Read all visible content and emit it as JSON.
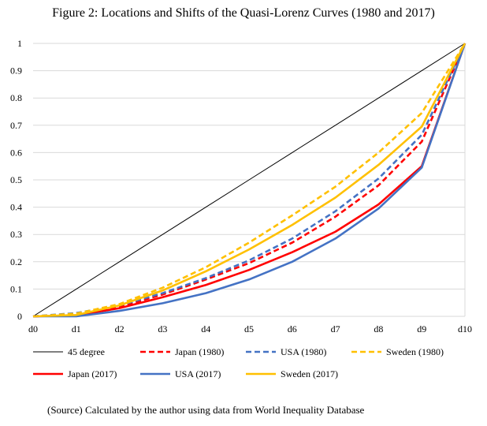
{
  "chart_data": {
    "type": "line",
    "title": "Figure 2: Locations and Shifts of the Quasi-Lorenz Curves (1980 and 2017)",
    "categories": [
      "d0",
      "d1",
      "d2",
      "d3",
      "d4",
      "d5",
      "d6",
      "d7",
      "d8",
      "d9",
      "d10"
    ],
    "yticks": [
      "0",
      "0.1",
      "0.2",
      "0.3",
      "0.4",
      "0.5",
      "0.6",
      "0.7",
      "0.8",
      "0.9",
      "1"
    ],
    "ylim": [
      0,
      1
    ],
    "grid": true,
    "legend_placement": "bottom",
    "series": [
      {
        "name": "45 degree",
        "color": "#000000",
        "dash": false,
        "values": [
          0,
          0.1,
          0.2,
          0.3,
          0.4,
          0.5,
          0.6,
          0.7,
          0.8,
          0.9,
          1
        ]
      },
      {
        "name": "Japan (1980)",
        "color": "#FF0000",
        "dash": true,
        "values": [
          0,
          0.005,
          0.035,
          0.08,
          0.135,
          0.195,
          0.27,
          0.365,
          0.48,
          0.64,
          1
        ]
      },
      {
        "name": "USA (1980)",
        "color": "#4472C4",
        "dash": true,
        "values": [
          0,
          0.012,
          0.04,
          0.085,
          0.14,
          0.205,
          0.285,
          0.385,
          0.505,
          0.665,
          1
        ]
      },
      {
        "name": "Sweden (1980)",
        "color": "#FFC000",
        "dash": true,
        "values": [
          0,
          0.01,
          0.045,
          0.105,
          0.18,
          0.27,
          0.37,
          0.475,
          0.6,
          0.745,
          1
        ]
      },
      {
        "name": "Japan (2017)",
        "color": "#FF0000",
        "dash": false,
        "values": [
          0,
          0.003,
          0.03,
          0.07,
          0.115,
          0.17,
          0.235,
          0.31,
          0.41,
          0.55,
          1
        ]
      },
      {
        "name": "USA (2017)",
        "color": "#4472C4",
        "dash": false,
        "values": [
          0,
          0,
          0.02,
          0.048,
          0.085,
          0.135,
          0.2,
          0.285,
          0.395,
          0.545,
          1
        ]
      },
      {
        "name": "Sweden (2017)",
        "color": "#FFC000",
        "dash": false,
        "values": [
          0,
          0.005,
          0.04,
          0.095,
          0.165,
          0.245,
          0.335,
          0.435,
          0.555,
          0.695,
          1
        ]
      }
    ]
  },
  "source": "(Source) Calculated by the author using data from World Inequality Database"
}
